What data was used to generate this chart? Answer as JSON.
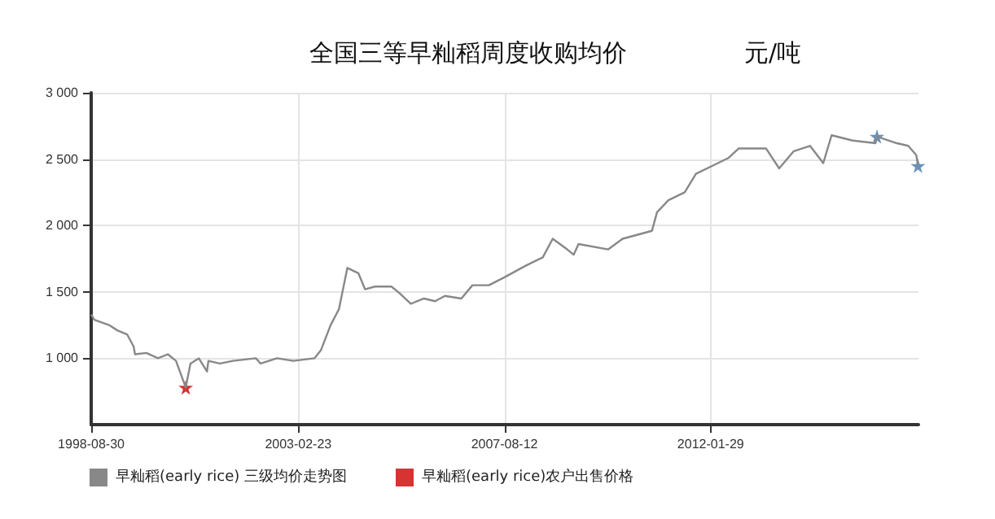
{
  "chart_data": {
    "type": "line",
    "title": "全国三等早籼稻周度收购均价",
    "ylabel": "元/吨",
    "xlim": [
      "1998-08-30",
      "2016-07-30"
    ],
    "xticks": [
      "1998-08-30",
      "2003-02-23",
      "2007-08-12",
      "2012-01-29"
    ],
    "ylim": [
      500,
      3000
    ],
    "yticks": [
      {
        "value": 1000,
        "label": "1 000"
      },
      {
        "value": 1500,
        "label": "1 500"
      },
      {
        "value": 2000,
        "label": "2 000"
      },
      {
        "value": 2500,
        "label": "2 500"
      },
      {
        "value": 3000,
        "label": "3 000"
      }
    ],
    "grid": true,
    "legend": "bottom left",
    "series": [
      {
        "name": "早籼稻(early rice) 三级均价走势图",
        "color": "#888888",
        "marker": "none",
        "x": [
          "1998-08-30",
          "1998-09-24",
          "1999-01-18",
          "1999-03-25",
          "1999-06-10",
          "1999-07-31",
          "1999-08-12",
          "1999-11-10",
          "2000-02-09",
          "2000-04-27",
          "2000-07-01",
          "2000-09-16",
          "2000-10-23",
          "2000-12-28",
          "2001-03-03",
          "2001-03-14",
          "2001-06-13",
          "2001-09-24",
          "2002-03-25",
          "2002-05-01",
          "2002-09-08",
          "2003-01-15",
          "2003-07-01",
          "2003-08-21",
          "2003-11-06",
          "2004-01-11",
          "2004-03-17",
          "2004-06-13",
          "2004-08-04",
          "2004-10-22",
          "2005-03-01",
          "2005-05-04",
          "2005-08-01",
          "2005-11-13",
          "2006-02-10",
          "2006-04-28",
          "2006-09-05",
          "2006-12-02",
          "2007-04-11",
          "2007-08-12",
          "2008-02-02",
          "2008-06-10",
          "2008-08-28",
          "2008-12-20",
          "2009-02-10",
          "2009-03-20",
          "2009-11-10",
          "2010-03-04",
          "2010-10-22",
          "2010-12-01",
          "2011-03-01",
          "2011-07-08",
          "2011-10-05",
          "2012-02-13",
          "2012-06-20",
          "2012-09-06",
          "2013-04-12",
          "2013-07-24",
          "2013-11-17",
          "2014-03-25",
          "2014-07-08",
          "2014-09-12",
          "2015-02-25",
          "2015-08-25",
          "2015-09-06",
          "2016-02-09",
          "2016-05-10",
          "2016-07-13",
          "2016-07-26"
        ],
        "values": [
          1330,
          1290,
          1250,
          1210,
          1180,
          1090,
          1030,
          1040,
          1000,
          1030,
          980,
          780,
          960,
          1000,
          900,
          980,
          960,
          980,
          1000,
          960,
          1000,
          980,
          1000,
          1060,
          1250,
          1370,
          1680,
          1640,
          1520,
          1540,
          1540,
          1490,
          1410,
          1450,
          1430,
          1470,
          1450,
          1550,
          1550,
          1610,
          1700,
          1760,
          1900,
          1820,
          1780,
          1860,
          1820,
          1900,
          1960,
          2100,
          2190,
          2250,
          2390,
          2450,
          2510,
          2580,
          2580,
          2430,
          2560,
          2600,
          2470,
          2680,
          2640,
          2620,
          2670,
          2620,
          2600,
          2530,
          2450
        ]
      },
      {
        "name": "早籼稻(early rice)农户出售价格",
        "color": "#cc0000",
        "type": "scatter",
        "marker": "star",
        "x": [
          "2000-09-16"
        ],
        "values": [
          780
        ]
      },
      {
        "color": "#4477aa",
        "type": "scatter",
        "marker": "star",
        "x": [
          "2015-09-06",
          "2016-07-26"
        ],
        "values": [
          2670,
          2450
        ]
      }
    ]
  }
}
